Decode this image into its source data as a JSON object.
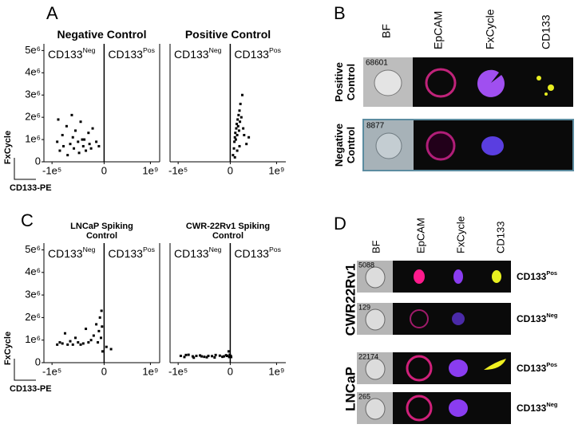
{
  "panel_labels": [
    "A",
    "B",
    "C",
    "D"
  ],
  "chart_data": [
    {
      "type": "scatter",
      "title": "Negative Control",
      "xlabel": "CD133-PE",
      "ylabel": "FxCycle",
      "quadrant_labels": [
        {
          "base": "CD133",
          "sup": "Neg"
        },
        {
          "base": "CD133",
          "sup": "Pos"
        }
      ],
      "x": [
        -90000,
        -85000,
        -80000,
        -78000,
        -72000,
        -70000,
        -65000,
        -60000,
        -58000,
        -55000,
        -50000,
        -48000,
        -45000,
        -40000,
        -38000,
        -35000,
        -30000,
        -28000,
        -25000,
        -22000,
        -15000,
        -10000,
        -88000,
        -62000,
        -42000
      ],
      "y": [
        900000,
        500000,
        1200000,
        700000,
        1600000,
        300000,
        800000,
        1100000,
        600000,
        1400000,
        900000,
        400000,
        1800000,
        700000,
        1000000,
        500000,
        1300000,
        800000,
        600000,
        1500000,
        900000,
        700000,
        1900000,
        2100000,
        1000000
      ],
      "color": "#000000",
      "xlim": [
        -100000,
        1000000000
      ],
      "ylim": [
        0,
        5300000
      ],
      "xticks": [
        {
          "value": -100000,
          "label": "-1e⁵"
        },
        0,
        {
          "value": 1000000000,
          "label": "1e⁹"
        }
      ],
      "yticks": [
        0,
        {
          "value": 1000000,
          "label": "1e⁶"
        },
        {
          "value": 2000000,
          "label": "2e⁶"
        },
        {
          "value": 3000000,
          "label": "3e⁶"
        },
        {
          "value": 4000000,
          "label": "4e⁶"
        },
        {
          "value": 5000000,
          "label": "5e⁶"
        }
      ]
    },
    {
      "type": "scatter",
      "title": "Positive Control",
      "quadrant_labels": [
        {
          "base": "CD133",
          "sup": "Neg"
        },
        {
          "base": "CD133",
          "sup": "Pos"
        }
      ],
      "x": [
        60000000,
        80000000,
        90000000,
        100000000,
        110000000,
        120000000,
        130000000,
        140000000,
        150000000,
        160000000,
        170000000,
        180000000,
        190000000,
        200000000,
        210000000,
        220000000,
        240000000,
        260000000,
        280000000,
        300000000,
        350000000,
        400000000,
        100000000,
        150000000,
        200000000
      ],
      "y": [
        300000,
        600000,
        900000,
        1100000,
        1300000,
        1000000,
        1500000,
        1700000,
        1200000,
        1900000,
        1600000,
        2100000,
        1400000,
        2300000,
        1800000,
        2600000,
        2000000,
        3000000,
        1500000,
        1200000,
        800000,
        1100000,
        200000,
        500000,
        700000
      ],
      "color": "#000000",
      "xlim": [
        -100000,
        1000000000
      ],
      "ylim": [
        0,
        5300000
      ],
      "xticks": [
        {
          "value": -100000,
          "label": "-1e⁵"
        },
        0,
        {
          "value": 1000000000,
          "label": "1e⁹"
        }
      ]
    },
    {
      "type": "scatter",
      "title": "LNCaP Spiking Control",
      "xlabel": "CD133-PE",
      "ylabel": "FxCycle",
      "quadrant_labels": [
        {
          "base": "CD133",
          "sup": "Neg"
        },
        {
          "base": "CD133",
          "sup": "Pos"
        }
      ],
      "x": [
        -90000,
        -85000,
        -80000,
        -75000,
        -70000,
        -65000,
        -60000,
        -55000,
        -50000,
        -45000,
        -40000,
        -35000,
        -30000,
        -25000,
        -20000,
        -15000,
        -10000,
        -8000,
        -6000,
        -5000,
        -4000,
        -12000,
        -3000,
        50000000,
        150000000
      ],
      "y": [
        800000,
        900000,
        850000,
        1300000,
        800000,
        950000,
        800000,
        1100000,
        900000,
        800000,
        850000,
        1500000,
        900000,
        1000000,
        1200000,
        1700000,
        1400000,
        2000000,
        1100000,
        2300000,
        1600000,
        900000,
        500000,
        700000,
        600000
      ],
      "color": "#000000",
      "xlim": [
        -100000,
        1000000000
      ],
      "ylim": [
        0,
        5300000
      ],
      "xticks": [
        {
          "value": -100000,
          "label": "-1e⁵"
        },
        0,
        {
          "value": 1000000000,
          "label": "1e⁹"
        }
      ],
      "yticks": [
        0,
        {
          "value": 1000000,
          "label": "1e⁶"
        },
        {
          "value": 2000000,
          "label": "2e⁶"
        },
        {
          "value": 3000000,
          "label": "3e⁶"
        },
        {
          "value": 4000000,
          "label": "4e⁶"
        },
        {
          "value": 5000000,
          "label": "5e⁶"
        }
      ]
    },
    {
      "type": "scatter",
      "title": "CWR-22Rv1 Spiking Control",
      "quadrant_labels": [
        {
          "base": "CD133",
          "sup": "Neg"
        },
        {
          "base": "CD133",
          "sup": "Pos"
        }
      ],
      "x": [
        -95000,
        -88000,
        -80000,
        -72000,
        -65000,
        -58000,
        -50000,
        -42000,
        -35000,
        -28000,
        -20000,
        -12000,
        -6000,
        -3000,
        -1000,
        -2000,
        -70000,
        -45000,
        -15000,
        -30000,
        -55000,
        -85000,
        -8000,
        10000000,
        20000000
      ],
      "y": [
        300000,
        250000,
        350000,
        280000,
        300000,
        320000,
        260000,
        300000,
        290000,
        340000,
        310000,
        280000,
        300000,
        500000,
        350000,
        250000,
        220000,
        240000,
        260000,
        230000,
        280000,
        340000,
        330000,
        300000,
        250000
      ],
      "color": "#000000",
      "xlim": [
        -100000,
        1000000000
      ],
      "ylim": [
        0,
        5300000
      ],
      "xticks": [
        {
          "value": -100000,
          "label": "-1e⁵"
        },
        0,
        {
          "value": 1000000000,
          "label": "1e⁹"
        }
      ]
    }
  ],
  "panel_b": {
    "columns": [
      "BF",
      "EpCAM",
      "FxCycle",
      "CD133"
    ],
    "rows": [
      {
        "label": [
          "Positive",
          "Control"
        ],
        "id": "68601"
      },
      {
        "label": [
          "Negative",
          "Control"
        ],
        "id": "8877"
      }
    ]
  },
  "panel_d": {
    "columns": [
      "BF",
      "EpCAM",
      "FxCycle",
      "CD133"
    ],
    "groups": [
      {
        "label": "CWR22Rv1",
        "rows": [
          {
            "id": "5088",
            "label": {
              "base": "CD133",
              "sup": "Pos"
            }
          },
          {
            "id": "129",
            "label": {
              "base": "CD133",
              "sup": "Neg"
            }
          }
        ]
      },
      {
        "label": "LNCaP",
        "rows": [
          {
            "id": "22174",
            "label": {
              "base": "CD133",
              "sup": "Pos"
            }
          },
          {
            "id": "265",
            "label": {
              "base": "CD133",
              "sup": "Neg"
            }
          }
        ]
      }
    ]
  }
}
